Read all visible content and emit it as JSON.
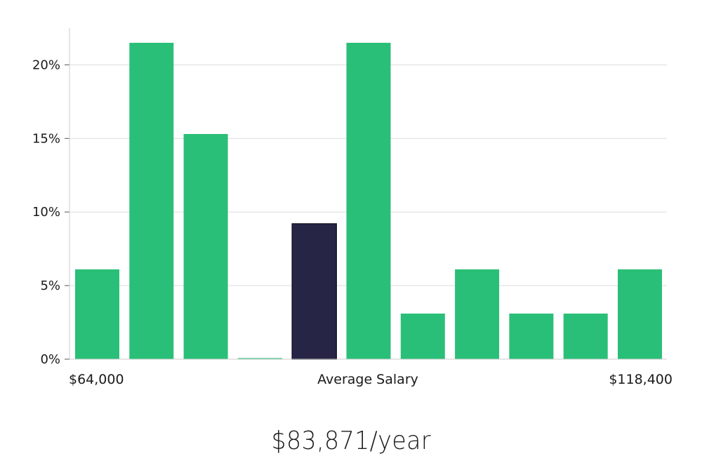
{
  "chart_data": {
    "type": "bar",
    "values": [
      6.1,
      21.5,
      15.3,
      0,
      9.2,
      21.5,
      3.1,
      6.1,
      3.1,
      3.1,
      6.1
    ],
    "highlight_index": 4,
    "ylim": [
      0,
      22.5
    ],
    "yticks": [
      0,
      5,
      10,
      15,
      20
    ],
    "ytick_labels": [
      "0%",
      "5%",
      "10%",
      "15%",
      "20%"
    ],
    "x_labels": {
      "min": "$64,000",
      "center": "Average Salary",
      "max": "$118,400"
    },
    "grid": true,
    "colors": {
      "bar": "#2abf78",
      "highlight": "#272546",
      "grid": "#dddddd",
      "axis": "#cccccc"
    }
  },
  "summary": {
    "salary": "$83,871/year"
  }
}
